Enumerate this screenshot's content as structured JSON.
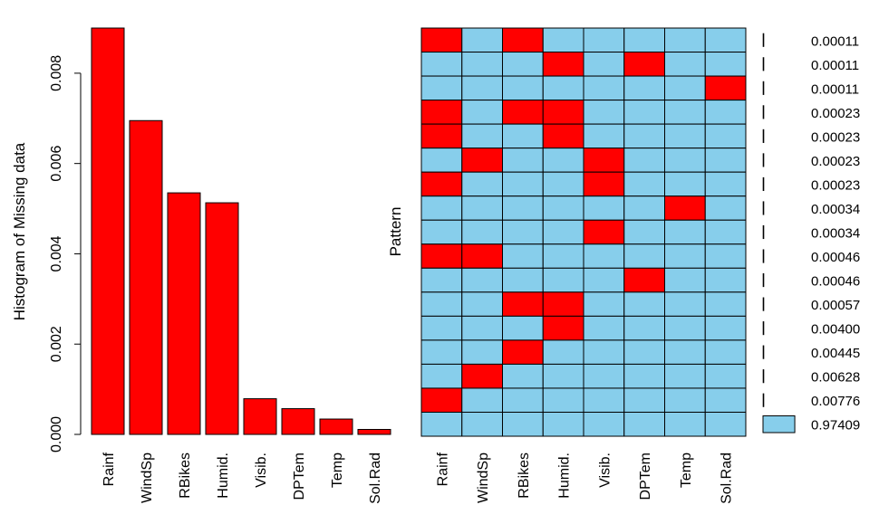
{
  "chart_data": [
    {
      "type": "bar",
      "ylabel": "Histogram of Missing data",
      "categories": [
        "Rainf",
        "WindSp",
        "RBikes",
        "Humid.",
        "Visib.",
        "DPTem",
        "Temp",
        "Sol.Rad"
      ],
      "values": [
        0.009,
        0.00695,
        0.00535,
        0.00513,
        0.00079,
        0.00057,
        0.00034,
        0.00011
      ],
      "ylim": [
        0,
        0.009
      ],
      "yticks": [
        "0.000",
        "0.002",
        "0.004",
        "0.006",
        "0.008"
      ],
      "bar_color": "#FF0000"
    },
    {
      "type": "heatmap",
      "ylabel": "Pattern",
      "columns": [
        "Rainf",
        "WindSp",
        "RBikes",
        "Humid.",
        "Visib.",
        "DPTem",
        "Temp",
        "Sol.Rad"
      ],
      "missing_color": "#FF0000",
      "observed_color": "#87CEEB",
      "rows": [
        {
          "pattern": [
            1,
            0,
            1,
            0,
            0,
            0,
            0,
            0
          ],
          "proportion": "0.00011"
        },
        {
          "pattern": [
            0,
            0,
            0,
            1,
            0,
            1,
            0,
            0
          ],
          "proportion": "0.00011"
        },
        {
          "pattern": [
            0,
            0,
            0,
            0,
            0,
            0,
            0,
            1
          ],
          "proportion": "0.00011"
        },
        {
          "pattern": [
            1,
            0,
            1,
            1,
            0,
            0,
            0,
            0
          ],
          "proportion": "0.00023"
        },
        {
          "pattern": [
            1,
            0,
            0,
            1,
            0,
            0,
            0,
            0
          ],
          "proportion": "0.00023"
        },
        {
          "pattern": [
            0,
            1,
            0,
            0,
            1,
            0,
            0,
            0
          ],
          "proportion": "0.00023"
        },
        {
          "pattern": [
            1,
            0,
            0,
            0,
            1,
            0,
            0,
            0
          ],
          "proportion": "0.00023"
        },
        {
          "pattern": [
            0,
            0,
            0,
            0,
            0,
            0,
            1,
            0
          ],
          "proportion": "0.00034"
        },
        {
          "pattern": [
            0,
            0,
            0,
            0,
            1,
            0,
            0,
            0
          ],
          "proportion": "0.00034"
        },
        {
          "pattern": [
            1,
            1,
            0,
            0,
            0,
            0,
            0,
            0
          ],
          "proportion": "0.00046"
        },
        {
          "pattern": [
            0,
            0,
            0,
            0,
            0,
            1,
            0,
            0
          ],
          "proportion": "0.00046"
        },
        {
          "pattern": [
            0,
            0,
            1,
            1,
            0,
            0,
            0,
            0
          ],
          "proportion": "0.00057"
        },
        {
          "pattern": [
            0,
            0,
            0,
            1,
            0,
            0,
            0,
            0
          ],
          "proportion": "0.00400"
        },
        {
          "pattern": [
            0,
            0,
            1,
            0,
            0,
            0,
            0,
            0
          ],
          "proportion": "0.00445"
        },
        {
          "pattern": [
            0,
            1,
            0,
            0,
            0,
            0,
            0,
            0
          ],
          "proportion": "0.00628"
        },
        {
          "pattern": [
            1,
            0,
            0,
            0,
            0,
            0,
            0,
            0
          ],
          "proportion": "0.00776"
        },
        {
          "pattern": [
            0,
            0,
            0,
            0,
            0,
            0,
            0,
            0
          ],
          "proportion": "0.97409"
        }
      ]
    }
  ]
}
